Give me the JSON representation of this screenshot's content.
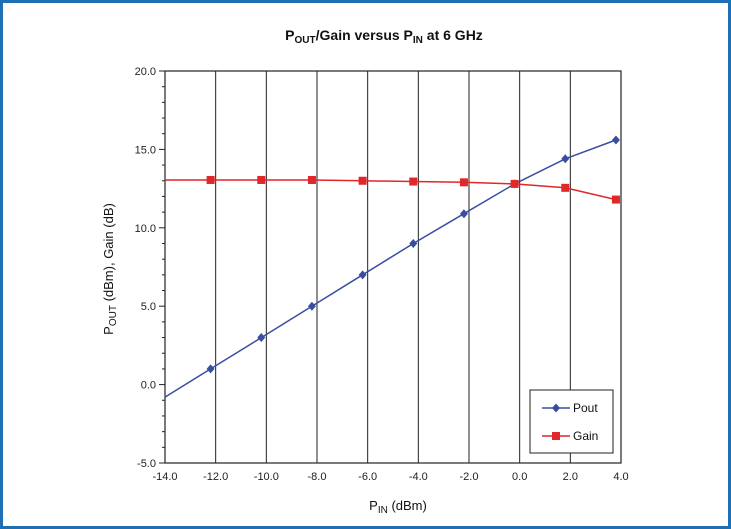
{
  "chart_data": {
    "type": "line",
    "title": {
      "main1": "P",
      "sub1": "OUT",
      "main2": "/Gain versus P",
      "sub2": "IN",
      "main3": " at 6 GHz"
    },
    "xlabel": {
      "main": "P",
      "sub": "IN",
      "rest": " (dBm)"
    },
    "ylabel": {
      "main": "P",
      "sub": "OUT",
      "rest": " (dBm), Gain (dB)"
    },
    "xlim": [
      -14,
      4
    ],
    "ylim": [
      -5,
      20
    ],
    "x_ticks": [
      "-14.0",
      "-12.0",
      "-10.0",
      "-8.0",
      "-6.0",
      "-4.0",
      "-2.0",
      "0.0",
      "2.0",
      "4.0"
    ],
    "y_ticks": [
      "-5.0",
      "0.0",
      "5.0",
      "10.0",
      "15.0",
      "20.0"
    ],
    "grid": "vertical",
    "legend_position": "bottom-right",
    "series": [
      {
        "name": "Pout",
        "color": "#3a4ea0",
        "marker": "diamond",
        "x": [
          -12.2,
          -10.2,
          -8.2,
          -6.2,
          -4.2,
          -2.2,
          -0.2,
          1.8,
          3.8
        ],
        "y": [
          1.0,
          3.0,
          5.0,
          7.0,
          9.0,
          10.9,
          12.8,
          14.4,
          15.6
        ],
        "line_start": [
          -14.0,
          -0.8
        ]
      },
      {
        "name": "Gain",
        "color": "#e0272a",
        "marker": "square",
        "x": [
          -12.2,
          -10.2,
          -8.2,
          -6.2,
          -4.2,
          -2.2,
          -0.2,
          1.8,
          3.8
        ],
        "y": [
          13.05,
          13.05,
          13.05,
          13.0,
          12.95,
          12.9,
          12.8,
          12.55,
          11.8
        ],
        "line_start": [
          -14.0,
          13.05
        ]
      }
    ]
  }
}
